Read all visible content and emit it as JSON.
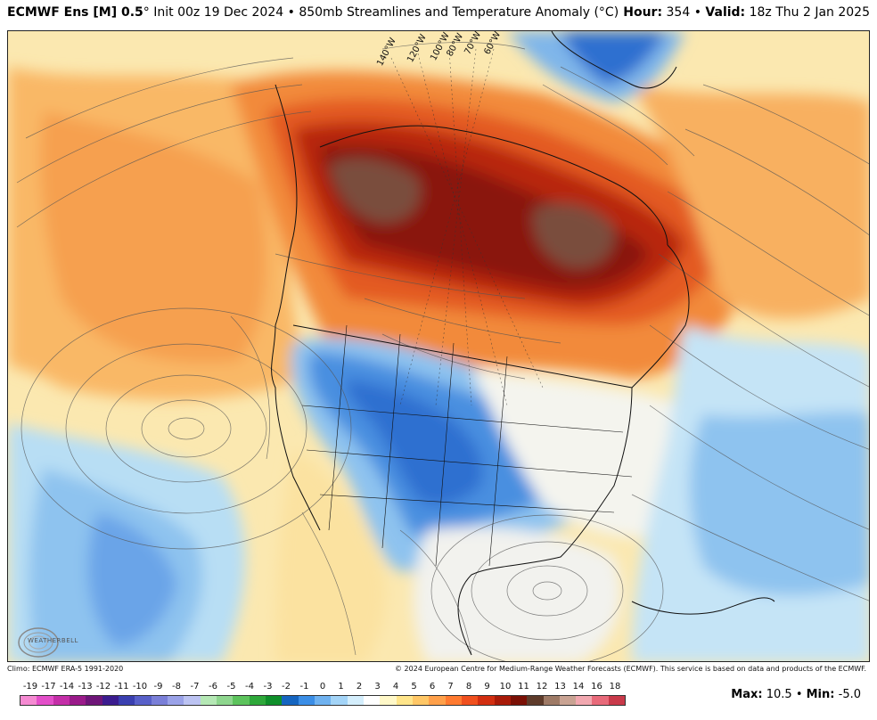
{
  "header": {
    "model_name": "ECMWF Ens [M] 0.5",
    "degree_sign": "°",
    "init_text": "Init 00z 19 Dec 2024",
    "bullet": "•",
    "product": "850mb Streamlines and Temperature Anomaly (°C)",
    "hour_label": "Hour:",
    "hour_value": "354",
    "valid_label": "Valid:",
    "valid_value": "18z Thu 2 Jan 2025"
  },
  "map": {
    "meridian_labels": [
      "140°W",
      "120°W",
      "100°W",
      "80°W",
      "70°W",
      "60°W"
    ],
    "logo_text": "WEATHERBELL"
  },
  "footer": {
    "climo": "Climo: ECMWF ERA-5 1991-2020",
    "copyright": "© 2024 European Centre for Medium-Range Weather Forecasts (ECMWF). This service is based on data and products of the ECMWF.",
    "max_label": "Max:",
    "max_value": "10.5",
    "min_label": "Min:",
    "min_value": "-5.0"
  },
  "legend": {
    "labels": [
      "-19",
      "-17",
      "-14",
      "-13",
      "-12",
      "-11",
      "-10",
      "-9",
      "-8",
      "-7",
      "-6",
      "-5",
      "-4",
      "-3",
      "-2",
      "-1",
      "0",
      "1",
      "2",
      "3",
      "4",
      "5",
      "6",
      "7",
      "8",
      "9",
      "10",
      "11",
      "12",
      "13",
      "14",
      "16",
      "18"
    ],
    "colors": [
      "#f58ad2",
      "#e34fc9",
      "#c42ea8",
      "#9a1a8a",
      "#6e1578",
      "#3b1c8f",
      "#3a3fb0",
      "#5860c9",
      "#7a7fd8",
      "#9aa2e8",
      "#bcc3f2",
      "#b5e8b5",
      "#8ed68e",
      "#5cc35c",
      "#2ea83a",
      "#0f8f2a",
      "#1565c0",
      "#3b8ee6",
      "#6fb2f0",
      "#a3d4f7",
      "#d4eefc",
      "#ffffff",
      "#fff8c8",
      "#ffe58a",
      "#ffc766",
      "#ffa04a",
      "#ff7a30",
      "#f0501e",
      "#d22e10",
      "#a81a08",
      "#7a1005",
      "#5e3b2a",
      "#9e7a66",
      "#c9a393",
      "#f2a8b0",
      "#e86a7a",
      "#c93a4a"
    ]
  }
}
